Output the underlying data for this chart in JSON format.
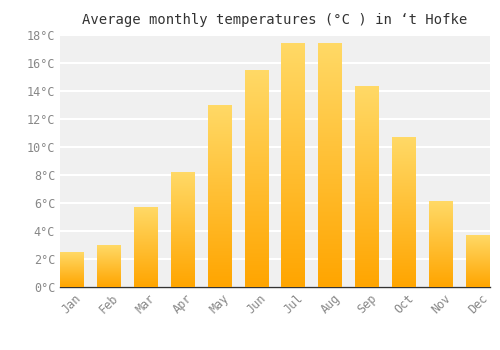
{
  "title": "Average monthly temperatures (°C ) in ‘t Hofke",
  "months": [
    "Jan",
    "Feb",
    "Mar",
    "Apr",
    "May",
    "Jun",
    "Jul",
    "Aug",
    "Sep",
    "Oct",
    "Nov",
    "Dec"
  ],
  "values": [
    2.5,
    3.0,
    5.7,
    8.2,
    13.0,
    15.5,
    17.4,
    17.4,
    14.3,
    10.7,
    6.1,
    3.7
  ],
  "bar_color_bottom": "#FFA500",
  "bar_color_top": "#FFD966",
  "background_color": "#FFFFFF",
  "plot_bg_color": "#F0F0F0",
  "grid_color": "#FFFFFF",
  "text_color": "#888888",
  "title_color": "#333333",
  "ylim": [
    0,
    18
  ],
  "yticks": [
    0,
    2,
    4,
    6,
    8,
    10,
    12,
    14,
    16,
    18
  ],
  "title_fontsize": 10,
  "tick_fontsize": 8.5,
  "bar_width": 0.65
}
